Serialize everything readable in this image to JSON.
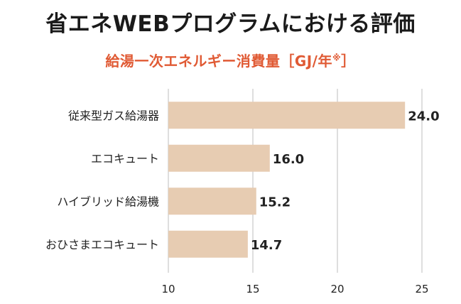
{
  "title": "省エネWEBプログラムにおける評価",
  "subtitle_main": "給湯一次エネルギー消費量［GJ/年",
  "subtitle_sup": "※",
  "subtitle_close": "］",
  "colors": {
    "bar": "#e7ccb2",
    "grid": "#bdbdbd",
    "title": "#1a1a1a",
    "subtitle": "#e05a34",
    "text": "#222222"
  },
  "chart_data": {
    "type": "bar",
    "orientation": "horizontal",
    "title": "省エネWEBプログラムにおける評価",
    "subtitle": "給湯一次エネルギー消費量［GJ/年※］",
    "categories": [
      "従来型ガス給湯器",
      "エコキュート",
      "ハイブリッド給湯機",
      "おひさまエコキュート"
    ],
    "values": [
      24.0,
      16.0,
      15.2,
      14.7
    ],
    "value_labels": [
      "24.0",
      "16.0",
      "15.2",
      "14.7"
    ],
    "xlim": [
      10,
      25
    ],
    "xticks": [
      "10",
      "15",
      "20",
      "25"
    ],
    "grid": true,
    "xlabel": "",
    "ylabel": ""
  }
}
